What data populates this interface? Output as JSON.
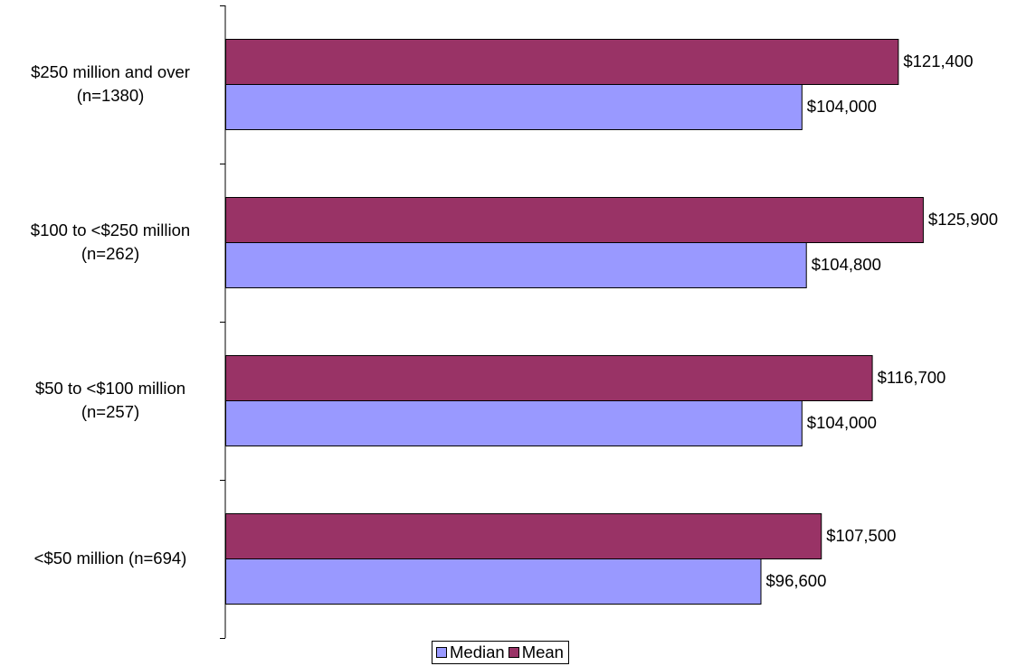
{
  "chart_data": {
    "type": "bar",
    "orientation": "horizontal",
    "categories": [
      [
        "$250 million and over",
        "(n=1380)"
      ],
      [
        "$100 to <$250 million",
        "(n=262)"
      ],
      [
        "$50 to <$100 million",
        "(n=257)"
      ],
      [
        "<$50 million (n=694)"
      ]
    ],
    "series": [
      {
        "name": "Mean",
        "color": "#993366",
        "values": [
          121400,
          125900,
          116700,
          107500
        ],
        "labels": [
          "$121,400",
          "$125,900",
          "$116,700",
          "$107,500"
        ]
      },
      {
        "name": "Median",
        "color": "#9999ff",
        "values": [
          104000,
          104800,
          104000,
          96600
        ],
        "labels": [
          "$104,000",
          "$104,800",
          "$104,000",
          "$96,600"
        ]
      }
    ],
    "xlim": [
      0,
      138000
    ],
    "grid": false,
    "legend_position": "bottom",
    "title": "",
    "xlabel": "",
    "ylabel": ""
  },
  "legend": {
    "items": [
      {
        "name": "Median",
        "color": "#9999ff"
      },
      {
        "name": "Mean",
        "color": "#993366"
      }
    ]
  }
}
